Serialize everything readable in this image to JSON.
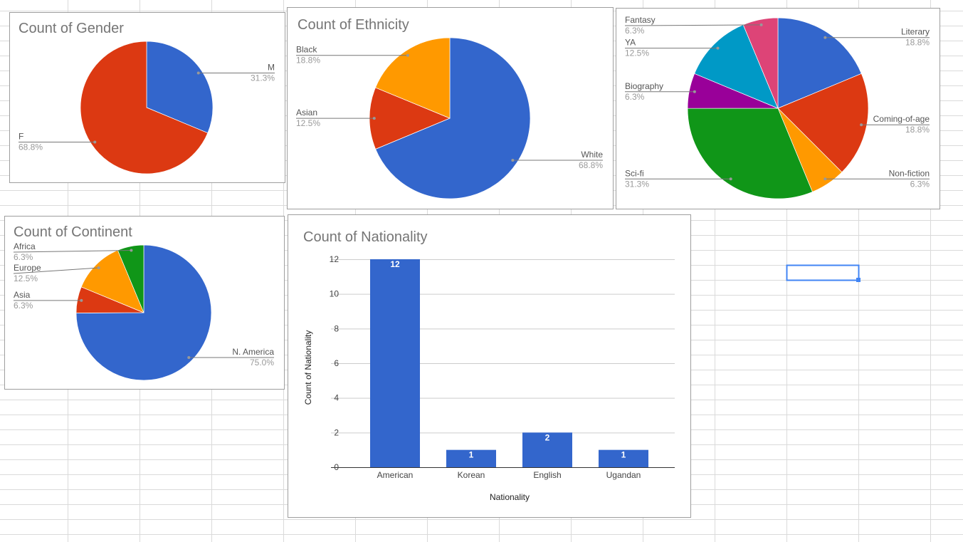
{
  "colors": {
    "blue": "#3366cc",
    "red": "#dc3912",
    "orange": "#ff9900",
    "green": "#109618",
    "purple": "#990099",
    "teal": "#0099c6",
    "pink": "#dd4477",
    "selection": "#4285f4"
  },
  "chart_data": [
    {
      "id": "gender",
      "type": "pie",
      "title": "Count of Gender",
      "slices": [
        {
          "label": "M",
          "value": 31.3,
          "pct": "31.3%",
          "color": "#3366cc"
        },
        {
          "label": "F",
          "value": 68.8,
          "pct": "68.8%",
          "color": "#dc3912"
        }
      ]
    },
    {
      "id": "ethnicity",
      "type": "pie",
      "title": "Count of Ethnicity",
      "slices": [
        {
          "label": "White",
          "value": 68.8,
          "pct": "68.8%",
          "color": "#3366cc"
        },
        {
          "label": "Asian",
          "value": 12.5,
          "pct": "12.5%",
          "color": "#dc3912"
        },
        {
          "label": "Black",
          "value": 18.8,
          "pct": "18.8%",
          "color": "#ff9900"
        }
      ]
    },
    {
      "id": "genre",
      "type": "pie",
      "title": "",
      "slices": [
        {
          "label": "Literary",
          "value": 18.8,
          "pct": "18.8%",
          "color": "#3366cc"
        },
        {
          "label": "Coming-of-age",
          "value": 18.8,
          "pct": "18.8%",
          "color": "#dc3912"
        },
        {
          "label": "Non-fiction",
          "value": 6.3,
          "pct": "6.3%",
          "color": "#ff9900"
        },
        {
          "label": "Sci-fi",
          "value": 31.3,
          "pct": "31.3%",
          "color": "#109618"
        },
        {
          "label": "Biography",
          "value": 6.3,
          "pct": "6.3%",
          "color": "#990099"
        },
        {
          "label": "YA",
          "value": 12.5,
          "pct": "12.5%",
          "color": "#0099c6"
        },
        {
          "label": "Fantasy",
          "value": 6.3,
          "pct": "6.3%",
          "color": "#dd4477"
        }
      ]
    },
    {
      "id": "continent",
      "type": "pie",
      "title": "Count of Continent",
      "slices": [
        {
          "label": "N. America",
          "value": 75.0,
          "pct": "75.0%",
          "color": "#3366cc"
        },
        {
          "label": "Asia",
          "value": 6.3,
          "pct": "6.3%",
          "color": "#dc3912"
        },
        {
          "label": "Europe",
          "value": 12.5,
          "pct": "12.5%",
          "color": "#ff9900"
        },
        {
          "label": "Africa",
          "value": 6.3,
          "pct": "6.3%",
          "color": "#109618"
        }
      ]
    },
    {
      "id": "nationality",
      "type": "bar",
      "title": "Count of Nationality",
      "xlabel": "Nationality",
      "ylabel": "Count of Nationality",
      "categories": [
        "American",
        "Korean",
        "English",
        "Ugandan"
      ],
      "values": [
        12,
        1,
        2,
        1
      ],
      "ylim": [
        0,
        12
      ],
      "yticks": [
        0,
        2,
        4,
        6,
        8,
        10,
        12
      ],
      "grid": true,
      "data_labels": true,
      "color": "#3366cc"
    }
  ]
}
